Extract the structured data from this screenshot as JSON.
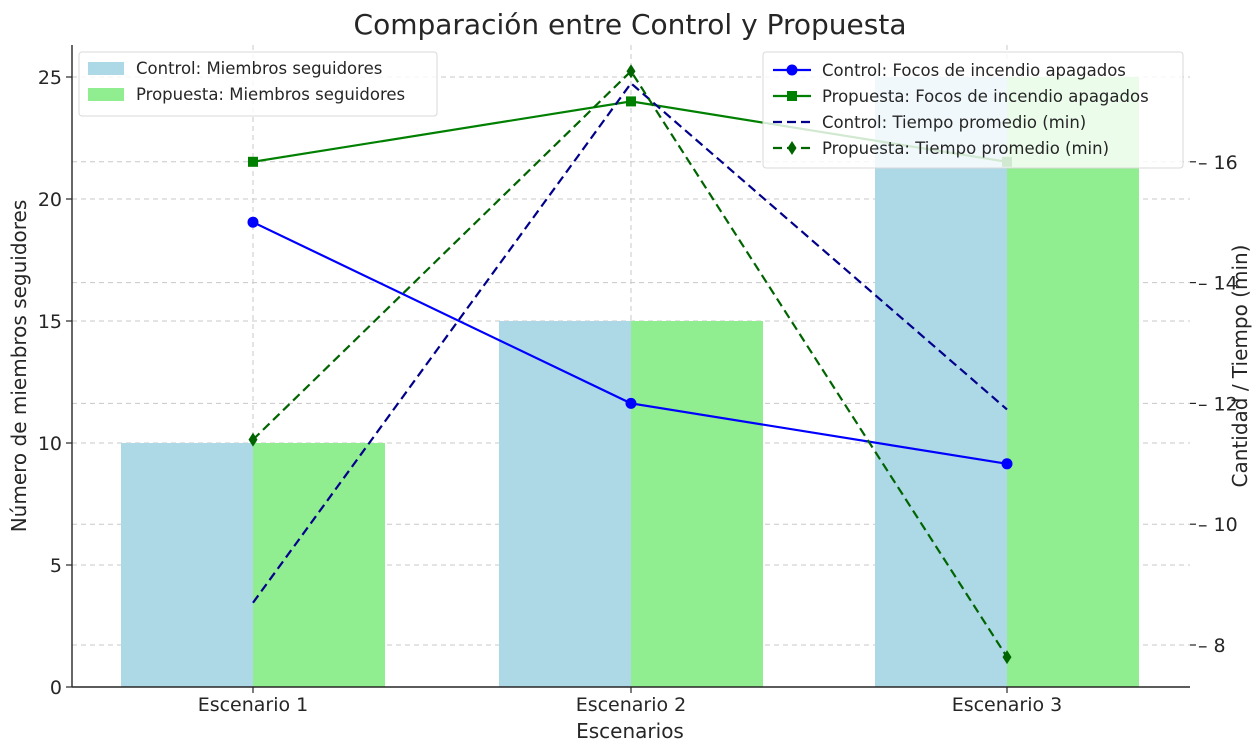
{
  "chart_data": {
    "type": "bar",
    "title": "Comparación entre Control y Propuesta",
    "xlabel": "Escenarios",
    "ylabel": "Número de miembros seguidores",
    "y2label": "Cantidad / Tiempo (min)",
    "categories": [
      "Escenario 1",
      "Escenario 2",
      "Escenario 3"
    ],
    "ylim": [
      0,
      26.5
    ],
    "y2lim": [
      7.3,
      17.5
    ],
    "yticks": [
      "0",
      "5",
      "10",
      "15",
      "20",
      "25"
    ],
    "y2ticks": [
      "8",
      "10",
      "12",
      "14",
      "16"
    ],
    "grid": true,
    "bar_series": [
      {
        "name": "Control: Miembros seguidores",
        "values": [
          10,
          15,
          25
        ],
        "color": "#add8e6"
      },
      {
        "name": "Propuesta: Miembros seguidores",
        "values": [
          10,
          15,
          25
        ],
        "color": "#90ee90"
      }
    ],
    "line_series": [
      {
        "name": "Control: Focos de incendio apagados",
        "values": [
          15,
          12,
          11
        ],
        "color": "#0000ff",
        "style": "solid",
        "marker": "circle"
      },
      {
        "name": "Propuesta: Focos de incendio apagados",
        "values": [
          16,
          17,
          16
        ],
        "color": "#008000",
        "style": "solid",
        "marker": "square"
      },
      {
        "name": "Control: Tiempo promedio (min)",
        "values": [
          8.7,
          17.3,
          11.9
        ],
        "color": "#00008b",
        "style": "dashed",
        "marker": "none"
      },
      {
        "name": "Propuesta: Tiempo promedio (min)",
        "values": [
          11.4,
          17.5,
          7.8
        ],
        "color": "#006400",
        "style": "dashed",
        "marker": "diamond"
      }
    ],
    "legend_left": "top-left",
    "legend_right": "top-right"
  }
}
